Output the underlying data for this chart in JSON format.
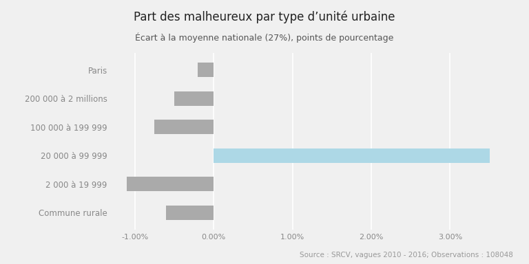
{
  "title": "Part des malheureux par type d’unité urbaine",
  "subtitle": "Écart à la moyenne nationale (27%), points de pourcentage",
  "source": "Source : SRCV, vagues 2010 - 2016; Observations : 108048",
  "categories": [
    "Commune rurale",
    "2 000 à 19 999",
    "20 000 à 99 999",
    "100 000 à 199 999",
    "200 000 à 2 millions",
    "Paris"
  ],
  "values": [
    -0.006,
    -0.011,
    0.035,
    -0.0075,
    -0.005,
    -0.002
  ],
  "bar_colors": [
    "#aaaaaa",
    "#aaaaaa",
    "#add8e6",
    "#aaaaaa",
    "#aaaaaa",
    "#aaaaaa"
  ],
  "xlim": [
    -0.013,
    0.038
  ],
  "xticks": [
    -0.01,
    0.0,
    0.01,
    0.02,
    0.03
  ],
  "xtick_labels": [
    "-1.00%",
    "0.00%",
    "1.00%",
    "2.00%",
    "3.00%"
  ],
  "background_color": "#f0f0f0",
  "grid_color": "#ffffff",
  "title_fontsize": 12,
  "subtitle_fontsize": 9,
  "label_fontsize": 8.5,
  "tick_fontsize": 8,
  "source_fontsize": 7.5
}
